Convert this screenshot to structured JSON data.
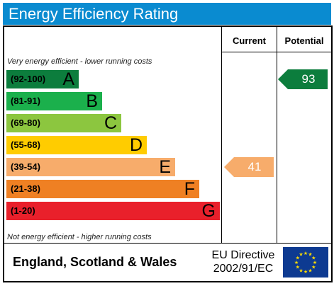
{
  "header": {
    "title": "Energy Efficiency Rating"
  },
  "columns": {
    "current": "Current",
    "potential": "Potential"
  },
  "notes": {
    "top": "Very energy efficient - lower running costs",
    "bottom": "Not energy efficient - higher running costs"
  },
  "bands": [
    {
      "range": "(92-100)",
      "letter": "A",
      "color": "#0c7d3d"
    },
    {
      "range": "(81-91)",
      "letter": "B",
      "color": "#1bb04c"
    },
    {
      "range": "(69-80)",
      "letter": "C",
      "color": "#8cc63f"
    },
    {
      "range": "(55-68)",
      "letter": "D",
      "color": "#ffcc00"
    },
    {
      "range": "(39-54)",
      "letter": "E",
      "color": "#f7ac6b"
    },
    {
      "range": "(21-38)",
      "letter": "F",
      "color": "#ef8023"
    },
    {
      "range": "(1-20)",
      "letter": "G",
      "color": "#e9202b"
    }
  ],
  "ratings": {
    "current": {
      "value": "41",
      "band": "E",
      "color": "#f7ac6b"
    },
    "potential": {
      "value": "93",
      "band": "A",
      "color": "#0c7d3d"
    }
  },
  "footer": {
    "country": "England, Scotland & Wales",
    "directive_line1": "EU Directive",
    "directive_line2": "2002/91/EC"
  }
}
